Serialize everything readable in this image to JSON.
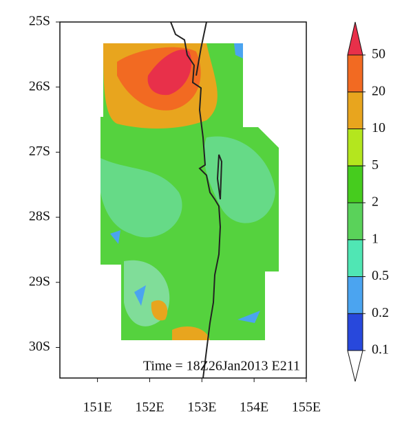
{
  "chart_data": {
    "type": "map",
    "annotation": "Time = 18Z26Jan2013 E211",
    "xlim": [
      150.28,
      155
    ],
    "ylim": [
      -30.47,
      -25
    ],
    "xticks": [
      {
        "value": 151,
        "label": "151E"
      },
      {
        "value": 152,
        "label": "152E"
      },
      {
        "value": 153,
        "label": "153E"
      },
      {
        "value": 154,
        "label": "154E"
      },
      {
        "value": 155,
        "label": "155E"
      }
    ],
    "yticks": [
      {
        "value": -25,
        "label": "25S"
      },
      {
        "value": -26,
        "label": "26S"
      },
      {
        "value": -27,
        "label": "27S"
      },
      {
        "value": -28,
        "label": "28S"
      },
      {
        "value": -29,
        "label": "29S"
      },
      {
        "value": -30,
        "label": "30S"
      }
    ],
    "colorbar": {
      "levels": [
        0.1,
        0.2,
        0.5,
        1,
        2,
        5,
        10,
        20,
        50
      ],
      "colors": [
        "#ffffff",
        "#2848dc",
        "#4ba4f0",
        "#50e6b4",
        "#5ad25a",
        "#46cc1e",
        "#b4e61e",
        "#e8a51e",
        "#f26a22",
        "#e8304a"
      ]
    }
  }
}
